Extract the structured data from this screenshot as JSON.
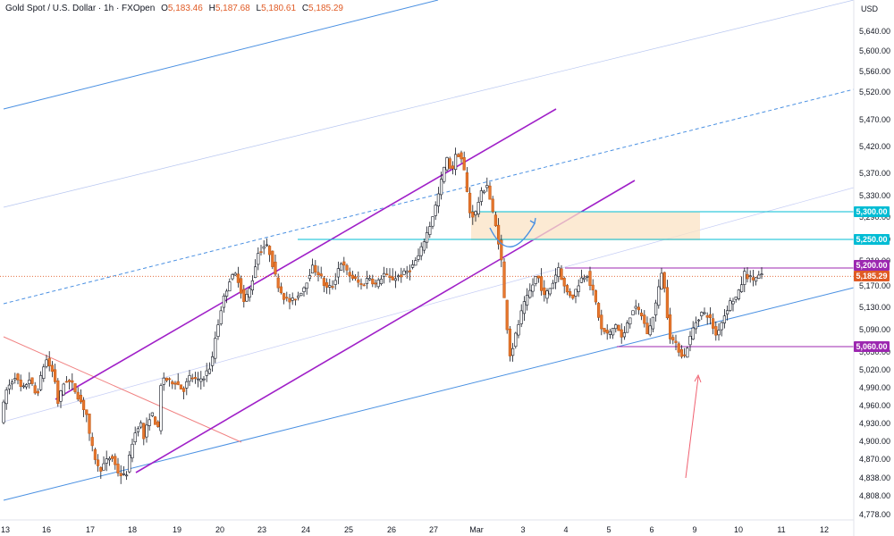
{
  "header": {
    "symbol": "Gold Spot / U.S. Dollar · 1h · FXOpen",
    "open_label": "O",
    "open": "5,183.46",
    "high_label": "H",
    "high": "5,187.68",
    "low_label": "L",
    "low": "5,180.61",
    "close_label": "C",
    "close": "5,185.29"
  },
  "chart_data": {
    "type": "candlestick",
    "currency": "USD",
    "ylim": [
      4760,
      5680
    ],
    "y_ticks": [
      "5,640.00",
      "5,600.00",
      "5,560.00",
      "5,520.00",
      "5,470.00",
      "5,420.00",
      "5,370.00",
      "5,330.00",
      "5,290.00",
      "5,250.00",
      "5,210.00",
      "5,170.00",
      "5,130.00",
      "5,090.00",
      "5,050.00",
      "5,020.00",
      "4,990.00",
      "4,960.00",
      "4,930.00",
      "4,900.00",
      "4,870.00",
      "4,838.00",
      "4,808.00",
      "4,778.00"
    ],
    "x_ticks": [
      "13",
      "16",
      "17",
      "18",
      "19",
      "20",
      "23",
      "24",
      "25",
      "26",
      "27",
      "Mar",
      "3",
      "4",
      "5",
      "6",
      "9",
      "10",
      "11",
      "12"
    ],
    "price_labels": [
      {
        "text": "5,300.00",
        "value": 5300,
        "color": "#00bcd4"
      },
      {
        "text": "5,250.00",
        "value": 5250,
        "color": "#00bcd4"
      },
      {
        "text": "5,200.00",
        "value": 5200,
        "color": "#9c27b0"
      },
      {
        "text": "5,185.29",
        "value": 5185.29,
        "color": "#e05a24"
      },
      {
        "text": "5,060.00",
        "value": 5060,
        "color": "#9c27b0"
      }
    ],
    "price_path": [
      [
        0,
        4935
      ],
      [
        0.3,
        4985
      ],
      [
        0.8,
        5010
      ],
      [
        1.2,
        4985
      ],
      [
        1.6,
        5005
      ],
      [
        2,
        4975
      ],
      [
        2.5,
        5040
      ],
      [
        3,
        5010
      ],
      [
        3.2,
        4965
      ],
      [
        3.6,
        5005
      ],
      [
        4,
        4995
      ],
      [
        4.5,
        4965
      ],
      [
        4.8,
        4945
      ],
      [
        5,
        4900
      ],
      [
        5.5,
        4850
      ],
      [
        6,
        4870
      ],
      [
        6.2,
        4875
      ],
      [
        6.6,
        4845
      ],
      [
        7,
        4840
      ],
      [
        7.4,
        4905
      ],
      [
        7.8,
        4935
      ],
      [
        8,
        4905
      ],
      [
        8.4,
        4950
      ],
      [
        8.8,
        4920
      ],
      [
        9,
        5010
      ],
      [
        9.4,
        5000
      ],
      [
        9.8,
        5000
      ],
      [
        10.2,
        4985
      ],
      [
        10.6,
        5010
      ],
      [
        11,
        5000
      ],
      [
        11.4,
        5010
      ],
      [
        11.8,
        5030
      ],
      [
        12,
        5075
      ],
      [
        12.4,
        5140
      ],
      [
        12.8,
        5180
      ],
      [
        13.2,
        5190
      ],
      [
        13.6,
        5140
      ],
      [
        14,
        5170
      ],
      [
        14.4,
        5225
      ],
      [
        14.8,
        5240
      ],
      [
        15,
        5230
      ],
      [
        15.4,
        5180
      ],
      [
        15.8,
        5150
      ],
      [
        16.2,
        5140
      ],
      [
        16.6,
        5150
      ],
      [
        17,
        5170
      ],
      [
        17.4,
        5200
      ],
      [
        17.8,
        5190
      ],
      [
        18.2,
        5165
      ],
      [
        18.6,
        5170
      ],
      [
        19,
        5210
      ],
      [
        19.4,
        5190
      ],
      [
        19.8,
        5180
      ],
      [
        20.2,
        5170
      ],
      [
        20.6,
        5185
      ],
      [
        21,
        5170
      ],
      [
        21.4,
        5190
      ],
      [
        21.8,
        5180
      ],
      [
        22.2,
        5185
      ],
      [
        22.6,
        5190
      ],
      [
        23,
        5200
      ],
      [
        23.4,
        5220
      ],
      [
        23.7,
        5250
      ],
      [
        24,
        5275
      ],
      [
        24.4,
        5320
      ],
      [
        24.8,
        5380
      ],
      [
        25,
        5400
      ],
      [
        25.2,
        5370
      ],
      [
        25.5,
        5410
      ],
      [
        25.8,
        5395
      ],
      [
        26,
        5360
      ],
      [
        26.2,
        5300
      ],
      [
        26.5,
        5290
      ],
      [
        26.8,
        5330
      ],
      [
        27.2,
        5350
      ],
      [
        27.5,
        5300
      ],
      [
        27.8,
        5255
      ],
      [
        28,
        5210
      ],
      [
        28.2,
        5130
      ],
      [
        28.5,
        5040
      ],
      [
        28.8,
        5080
      ],
      [
        29.2,
        5130
      ],
      [
        29.6,
        5160
      ],
      [
        30,
        5190
      ],
      [
        30.4,
        5150
      ],
      [
        30.8,
        5170
      ],
      [
        31.2,
        5200
      ],
      [
        31.6,
        5160
      ],
      [
        32,
        5150
      ],
      [
        32.4,
        5180
      ],
      [
        32.8,
        5190
      ],
      [
        33.2,
        5150
      ],
      [
        33.6,
        5090
      ],
      [
        34,
        5080
      ],
      [
        34.4,
        5100
      ],
      [
        34.8,
        5070
      ],
      [
        35,
        5100
      ],
      [
        35.4,
        5130
      ],
      [
        35.8,
        5120
      ],
      [
        36.2,
        5080
      ],
      [
        36.6,
        5130
      ],
      [
        37,
        5200
      ],
      [
        37.4,
        5080
      ],
      [
        37.8,
        5060
      ],
      [
        38.2,
        5040
      ],
      [
        38.5,
        5070
      ],
      [
        38.8,
        5100
      ],
      [
        39.2,
        5120
      ],
      [
        39.6,
        5115
      ],
      [
        40,
        5080
      ],
      [
        40.4,
        5110
      ],
      [
        40.8,
        5140
      ],
      [
        41.2,
        5150
      ],
      [
        41.6,
        5190
      ],
      [
        42,
        5180
      ],
      [
        42.4,
        5185
      ]
    ]
  }
}
